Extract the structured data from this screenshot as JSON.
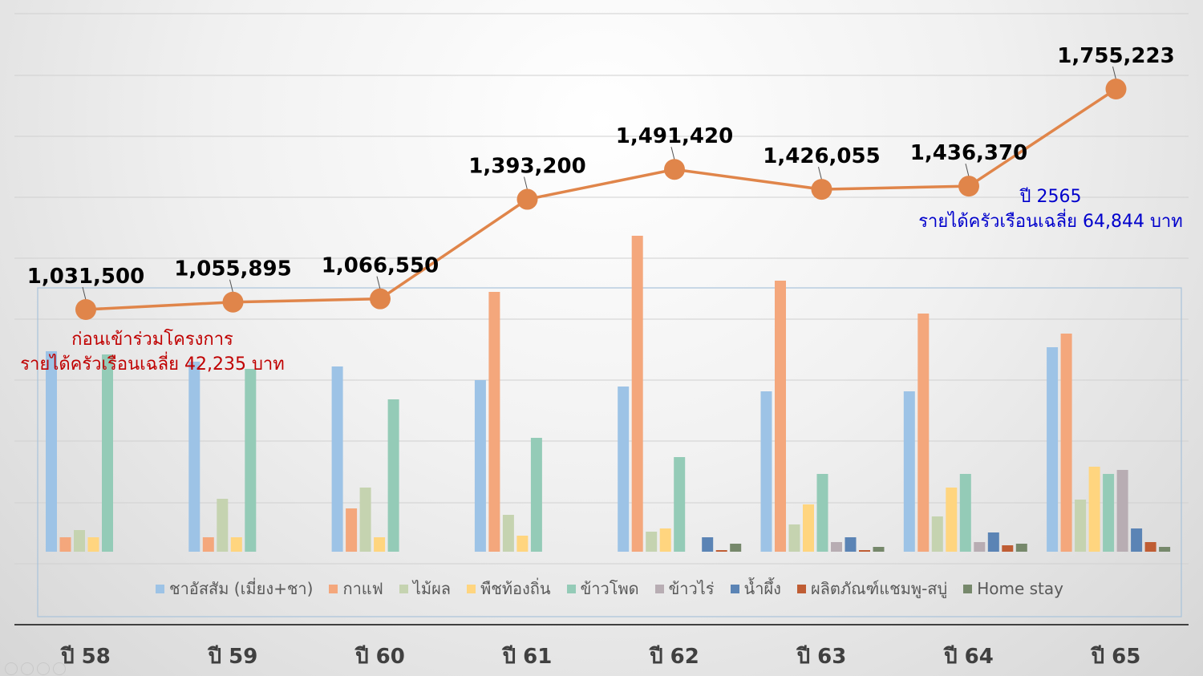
{
  "chart_data": {
    "type": "bar",
    "categories": [
      "ปี 58",
      "ปี 59",
      "ปี 60",
      "ปี 61",
      "ปี 62",
      "ปี 63",
      "ปี 64",
      "ปี 65"
    ],
    "bar_series": [
      {
        "name": "ชาอัสสัม (เมี่ยง+ชา)",
        "color": "#9dc3e6",
        "values": [
          250,
          237,
          231,
          214,
          206,
          200,
          200,
          255
        ]
      },
      {
        "name": "กาแฟ",
        "color": "#f4a77c",
        "values": [
          18,
          18,
          54,
          324,
          394,
          338,
          297,
          272
        ]
      },
      {
        "name": "ไม้ผล",
        "color": "#c5d3b0",
        "values": [
          27,
          66,
          80,
          46,
          25,
          34,
          44,
          65
        ]
      },
      {
        "name": "พืชท้องถิ่น",
        "color": "#ffd57f",
        "values": [
          18,
          18,
          18,
          20,
          29,
          59,
          80,
          106
        ]
      },
      {
        "name": "ข้าวโพด",
        "color": "#94cbb7",
        "values": [
          246,
          228,
          190,
          142,
          118,
          97,
          97,
          97
        ]
      },
      {
        "name": "ข้าวไร่",
        "color": "#b8adb3",
        "values": [
          0,
          0,
          0,
          0,
          0,
          12,
          12,
          102
        ]
      },
      {
        "name": "น้ำผึ้ง",
        "color": "#5b84b5",
        "values": [
          0,
          0,
          0,
          0,
          18,
          18,
          24,
          29
        ]
      },
      {
        "name": "ผลิตภัณฑ์แชมพู-สบู่",
        "color": "#bf5d34",
        "values": [
          0,
          0,
          0,
          0,
          2,
          2,
          8,
          12
        ]
      },
      {
        "name": "Home stay",
        "color": "#76886b",
        "values": [
          0,
          0,
          0,
          0,
          10,
          6,
          10,
          6
        ]
      }
    ],
    "line_series": {
      "color": "#e0854a",
      "values": [
        1031500,
        1055895,
        1066550,
        1393200,
        1491420,
        1426055,
        1436370,
        1755223
      ],
      "labels": [
        "1,031,500",
        "1,055,895",
        "1,066,550",
        "1,393,200",
        "1,491,420",
        "1,426,055",
        "1,436,370",
        "1,755,223"
      ]
    },
    "grid": true,
    "legend_position": "bottom"
  },
  "annotations": {
    "before_line1": "ก่อนเข้าร่วมโครงการ",
    "before_line2": "รายได้ครัวเรือนเฉลี่ย 42,235 บาท",
    "after_line1": "ปี 2565",
    "after_line2": "รายได้ครัวเรือนเฉลี่ย 64,844 บาท"
  }
}
